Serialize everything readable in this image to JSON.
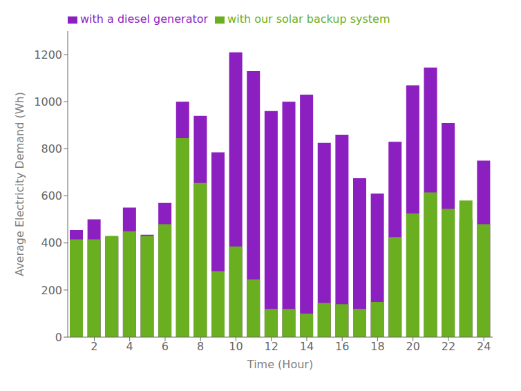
{
  "chart_data": {
    "type": "bar",
    "x": [
      1,
      2,
      3,
      4,
      5,
      6,
      7,
      8,
      9,
      10,
      11,
      12,
      13,
      14,
      15,
      16,
      17,
      18,
      19,
      20,
      21,
      22,
      23,
      24
    ],
    "series": [
      {
        "name": "with a diesel generator",
        "color": "#8B1FBF",
        "values": [
          455,
          500,
          425,
          550,
          435,
          570,
          1000,
          940,
          785,
          1210,
          1130,
          960,
          1000,
          1030,
          825,
          860,
          675,
          610,
          830,
          1070,
          1145,
          910,
          500,
          750
        ]
      },
      {
        "name": "with our solar backup system",
        "color": "#6AAF20",
        "values": [
          415,
          415,
          430,
          450,
          430,
          480,
          845,
          655,
          280,
          385,
          245,
          120,
          120,
          100,
          145,
          140,
          120,
          150,
          425,
          525,
          615,
          545,
          580,
          480
        ]
      }
    ],
    "xlabel": "Time (Hour)",
    "ylabel": "Average Electricity Demand (Wh)",
    "xlim": [
      0.5,
      24.5
    ],
    "xticks": [
      2,
      4,
      6,
      8,
      10,
      12,
      14,
      16,
      18,
      20,
      22,
      24
    ],
    "ylim": [
      0,
      1300
    ],
    "yticks": [
      0,
      200,
      400,
      600,
      800,
      1000,
      1200
    ],
    "grid": false,
    "legend": "upper left"
  }
}
